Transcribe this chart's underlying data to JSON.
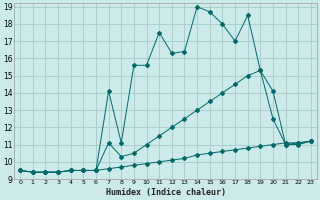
{
  "xlabel": "Humidex (Indice chaleur)",
  "bg_color": "#cceaea",
  "grid_color": "#aacece",
  "line_color": "#006868",
  "xlim": [
    -0.5,
    23.5
  ],
  "ylim": [
    9,
    19.2
  ],
  "xticks": [
    0,
    1,
    2,
    3,
    4,
    5,
    6,
    7,
    8,
    9,
    10,
    11,
    12,
    13,
    14,
    15,
    16,
    17,
    18,
    19,
    20,
    21,
    22,
    23
  ],
  "yticks": [
    9,
    10,
    11,
    12,
    13,
    14,
    15,
    16,
    17,
    18,
    19
  ],
  "series1_x": [
    0,
    1,
    2,
    3,
    4,
    5,
    6,
    7,
    8,
    9,
    10,
    11,
    12,
    13,
    14,
    15,
    16,
    17,
    18,
    19,
    20,
    21,
    22,
    23
  ],
  "series1_y": [
    9.5,
    9.4,
    9.4,
    9.4,
    9.5,
    9.5,
    9.5,
    9.6,
    9.7,
    9.8,
    9.9,
    10.0,
    10.1,
    10.2,
    10.4,
    10.5,
    10.6,
    10.7,
    10.8,
    10.9,
    11.0,
    11.1,
    11.1,
    11.2
  ],
  "series2_x": [
    0,
    1,
    2,
    3,
    4,
    5,
    6,
    7,
    8,
    9,
    10,
    11,
    12,
    13,
    14,
    15,
    16,
    17,
    18,
    19,
    20,
    21,
    22,
    23
  ],
  "series2_y": [
    9.5,
    9.4,
    9.4,
    9.4,
    9.5,
    9.5,
    9.5,
    11.1,
    10.3,
    10.5,
    11.0,
    11.5,
    12.0,
    12.5,
    13.0,
    13.5,
    14.0,
    14.5,
    15.0,
    15.3,
    14.1,
    11.0,
    11.0,
    11.2
  ],
  "series3_x": [
    0,
    1,
    2,
    3,
    4,
    5,
    6,
    7,
    8,
    9,
    10,
    11,
    12,
    13,
    14,
    15,
    16,
    17,
    18,
    19,
    20,
    21,
    22,
    23
  ],
  "series3_y": [
    9.5,
    9.4,
    9.4,
    9.4,
    9.5,
    9.5,
    9.5,
    14.1,
    11.1,
    15.6,
    15.6,
    17.5,
    16.3,
    16.4,
    19.0,
    18.7,
    18.0,
    17.0,
    18.5,
    15.3,
    12.5,
    11.0,
    11.1,
    11.2
  ]
}
